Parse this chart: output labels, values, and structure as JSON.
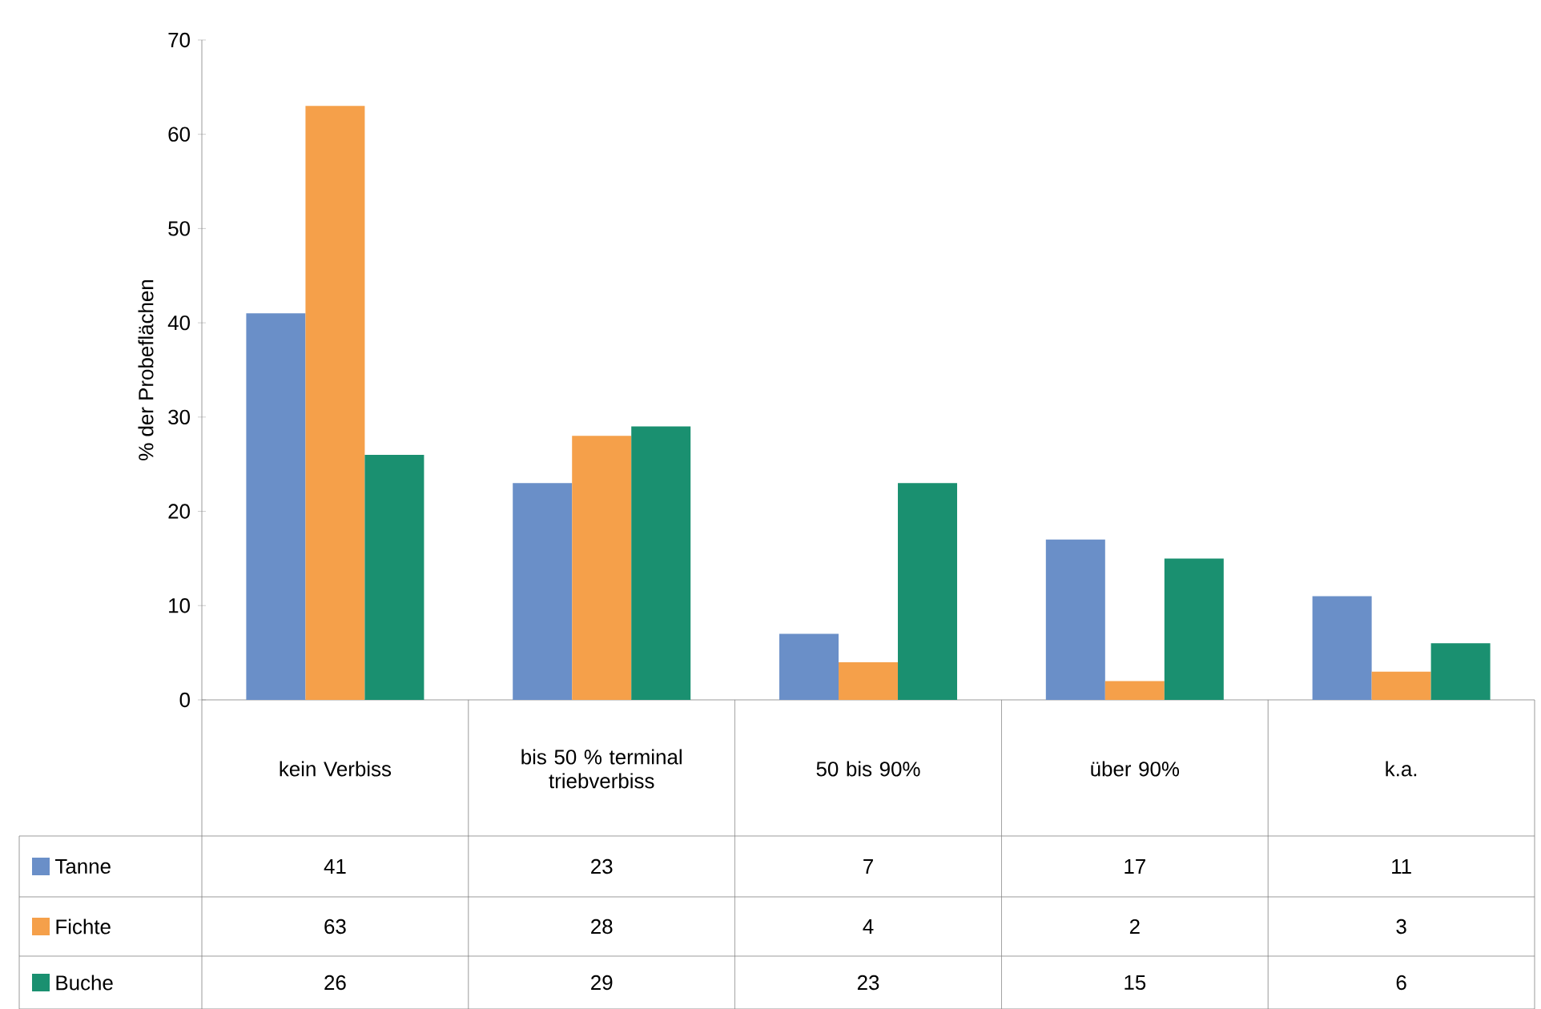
{
  "chart_data": {
    "type": "bar",
    "ylabel": "% der Probeflächen",
    "categories": [
      "kein Verbiss",
      "bis 50 % terminal triebverbiss",
      "50 bis 90%",
      "über 90%",
      "k.a."
    ],
    "series": [
      {
        "name": "Tanne",
        "color": "#6a8fc8",
        "values": [
          41,
          23,
          7,
          17,
          11
        ]
      },
      {
        "name": "Fichte",
        "color": "#f5a04a",
        "values": [
          63,
          28,
          4,
          2,
          3
        ]
      },
      {
        "name": "Buche",
        "color": "#1a9070",
        "values": [
          26,
          29,
          23,
          15,
          6
        ]
      }
    ],
    "ylim": [
      0,
      70
    ],
    "yticks": [
      0,
      10,
      20,
      30,
      40,
      50,
      60,
      70
    ],
    "data_labels": true,
    "legend": "bottom"
  }
}
